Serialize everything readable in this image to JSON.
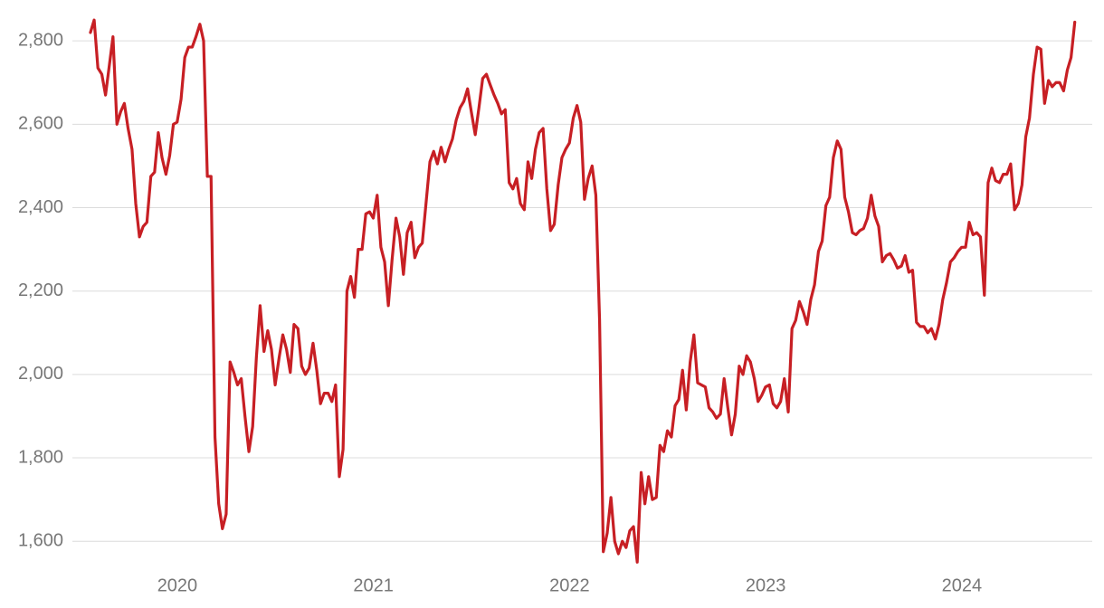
{
  "chart_data": {
    "type": "line",
    "xlim": [
      2019.465,
      2024.665
    ],
    "ylim": [
      1466,
      2898
    ],
    "xticks": [
      2020,
      2021,
      2022,
      2023,
      2024
    ],
    "yticks": [
      {
        "value": 1600,
        "label": "1,600"
      },
      {
        "value": 1800,
        "label": "1,800"
      },
      {
        "value": 2000,
        "label": "2,000"
      },
      {
        "value": 2200,
        "label": "2,200"
      },
      {
        "value": 2400,
        "label": "2,400"
      },
      {
        "value": 2600,
        "label": "2,600"
      },
      {
        "value": 2800,
        "label": "2,800"
      }
    ],
    "grid": true,
    "x": [
      2019.557,
      2019.576,
      2019.595,
      2019.615,
      2019.634,
      2019.653,
      2019.672,
      2019.692,
      2019.711,
      2019.73,
      2019.749,
      2019.769,
      2019.788,
      2019.807,
      2019.826,
      2019.845,
      2019.865,
      2019.884,
      2019.903,
      2019.922,
      2019.942,
      2019.961,
      2019.98,
      2019.999,
      2020.019,
      2020.038,
      2020.057,
      2020.076,
      2020.095,
      2020.115,
      2020.134,
      2020.153,
      2020.172,
      2020.192,
      2020.211,
      2020.23,
      2020.249,
      2020.269,
      2020.288,
      2020.307,
      2020.326,
      2020.345,
      2020.365,
      2020.384,
      2020.403,
      2020.422,
      2020.442,
      2020.461,
      2020.48,
      2020.499,
      2020.519,
      2020.538,
      2020.557,
      2020.576,
      2020.595,
      2020.615,
      2020.634,
      2020.653,
      2020.672,
      2020.692,
      2020.711,
      2020.73,
      2020.749,
      2020.769,
      2020.788,
      2020.807,
      2020.826,
      2020.845,
      2020.865,
      2020.884,
      2020.903,
      2020.922,
      2020.942,
      2020.961,
      2020.98,
      2020.999,
      2021.019,
      2021.038,
      2021.057,
      2021.076,
      2021.095,
      2021.115,
      2021.134,
      2021.153,
      2021.172,
      2021.192,
      2021.211,
      2021.23,
      2021.249,
      2021.269,
      2021.288,
      2021.307,
      2021.326,
      2021.345,
      2021.365,
      2021.384,
      2021.403,
      2021.422,
      2021.442,
      2021.461,
      2021.48,
      2021.499,
      2021.519,
      2021.538,
      2021.557,
      2021.576,
      2021.595,
      2021.615,
      2021.634,
      2021.653,
      2021.672,
      2021.692,
      2021.711,
      2021.73,
      2021.749,
      2021.769,
      2021.788,
      2021.807,
      2021.826,
      2021.845,
      2021.865,
      2021.884,
      2021.903,
      2021.922,
      2021.942,
      2021.961,
      2021.98,
      2021.999,
      2022.019,
      2022.038,
      2022.057,
      2022.076,
      2022.095,
      2022.115,
      2022.134,
      2022.153,
      2022.172,
      2022.192,
      2022.211,
      2022.23,
      2022.249,
      2022.269,
      2022.288,
      2022.307,
      2022.326,
      2022.345,
      2022.365,
      2022.384,
      2022.403,
      2022.422,
      2022.442,
      2022.461,
      2022.48,
      2022.499,
      2022.519,
      2022.538,
      2022.557,
      2022.576,
      2022.595,
      2022.615,
      2022.634,
      2022.653,
      2022.672,
      2022.692,
      2022.711,
      2022.73,
      2022.749,
      2022.769,
      2022.788,
      2022.807,
      2022.826,
      2022.845,
      2022.865,
      2022.884,
      2022.903,
      2022.922,
      2022.942,
      2022.961,
      2022.98,
      2022.999,
      2023.019,
      2023.038,
      2023.057,
      2023.076,
      2023.095,
      2023.115,
      2023.134,
      2023.153,
      2023.172,
      2023.192,
      2023.211,
      2023.23,
      2023.249,
      2023.269,
      2023.288,
      2023.307,
      2023.326,
      2023.345,
      2023.365,
      2023.384,
      2023.403,
      2023.422,
      2023.442,
      2023.461,
      2023.48,
      2023.499,
      2023.519,
      2023.538,
      2023.557,
      2023.576,
      2023.595,
      2023.615,
      2023.634,
      2023.653,
      2023.672,
      2023.692,
      2023.711,
      2023.73,
      2023.749,
      2023.769,
      2023.788,
      2023.807,
      2023.826,
      2023.845,
      2023.865,
      2023.884,
      2023.903,
      2023.922,
      2023.942,
      2023.961,
      2023.98,
      2023.999,
      2024.019,
      2024.038,
      2024.057,
      2024.076,
      2024.095,
      2024.115,
      2024.134,
      2024.153,
      2024.172,
      2024.192,
      2024.211,
      2024.23,
      2024.249,
      2024.269,
      2024.288,
      2024.307,
      2024.326,
      2024.345,
      2024.365,
      2024.384,
      2024.403,
      2024.422,
      2024.442,
      2024.461,
      2024.48,
      2024.499,
      2024.519,
      2024.538,
      2024.557,
      2024.576
    ],
    "series": [
      {
        "color": "#c71f24",
        "values": [
          2820,
          2850,
          2735,
          2720,
          2670,
          2740,
          2810,
          2600,
          2630,
          2650,
          2590,
          2540,
          2410,
          2330,
          2355,
          2365,
          2475,
          2485,
          2580,
          2520,
          2480,
          2525,
          2600,
          2605,
          2660,
          2760,
          2785,
          2785,
          2810,
          2840,
          2800,
          2475,
          2475,
          1850,
          1690,
          1630,
          1665,
          2030,
          2005,
          1975,
          1990,
          1900,
          1815,
          1875,
          2040,
          2165,
          2055,
          2105,
          2060,
          1975,
          2040,
          2095,
          2060,
          2005,
          2120,
          2110,
          2020,
          2000,
          2015,
          2075,
          2010,
          1930,
          1955,
          1955,
          1935,
          1975,
          1755,
          1820,
          2200,
          2235,
          2185,
          2300,
          2300,
          2385,
          2390,
          2375,
          2430,
          2305,
          2270,
          2165,
          2275,
          2375,
          2330,
          2240,
          2340,
          2365,
          2280,
          2305,
          2315,
          2415,
          2510,
          2535,
          2505,
          2545,
          2510,
          2540,
          2565,
          2610,
          2640,
          2655,
          2685,
          2630,
          2575,
          2640,
          2710,
          2720,
          2695,
          2670,
          2650,
          2625,
          2635,
          2460,
          2445,
          2470,
          2410,
          2395,
          2510,
          2470,
          2540,
          2580,
          2590,
          2445,
          2345,
          2360,
          2455,
          2520,
          2540,
          2555,
          2615,
          2645,
          2605,
          2420,
          2470,
          2500,
          2430,
          2130,
          1575,
          1620,
          1705,
          1600,
          1570,
          1600,
          1585,
          1625,
          1635,
          1550,
          1765,
          1690,
          1755,
          1700,
          1705,
          1830,
          1815,
          1865,
          1850,
          1925,
          1940,
          2010,
          1915,
          2030,
          2095,
          1980,
          1975,
          1970,
          1920,
          1910,
          1895,
          1905,
          1990,
          1920,
          1855,
          1905,
          2020,
          2000,
          2045,
          2030,
          1990,
          1935,
          1950,
          1970,
          1975,
          1930,
          1920,
          1935,
          1990,
          1910,
          2110,
          2130,
          2175,
          2150,
          2120,
          2180,
          2215,
          2295,
          2320,
          2405,
          2425,
          2520,
          2560,
          2540,
          2425,
          2390,
          2340,
          2335,
          2345,
          2350,
          2375,
          2430,
          2380,
          2355,
          2270,
          2285,
          2290,
          2275,
          2255,
          2260,
          2285,
          2245,
          2250,
          2125,
          2115,
          2115,
          2100,
          2110,
          2085,
          2120,
          2180,
          2220,
          2270,
          2280,
          2295,
          2305,
          2305,
          2365,
          2335,
          2340,
          2330,
          2190,
          2460,
          2495,
          2465,
          2460,
          2480,
          2480,
          2505,
          2395,
          2410,
          2455,
          2570,
          2615,
          2720,
          2785,
          2780,
          2650,
          2705,
          2690,
          2700,
          2700,
          2680,
          2730,
          2760,
          2845
        ]
      }
    ]
  }
}
